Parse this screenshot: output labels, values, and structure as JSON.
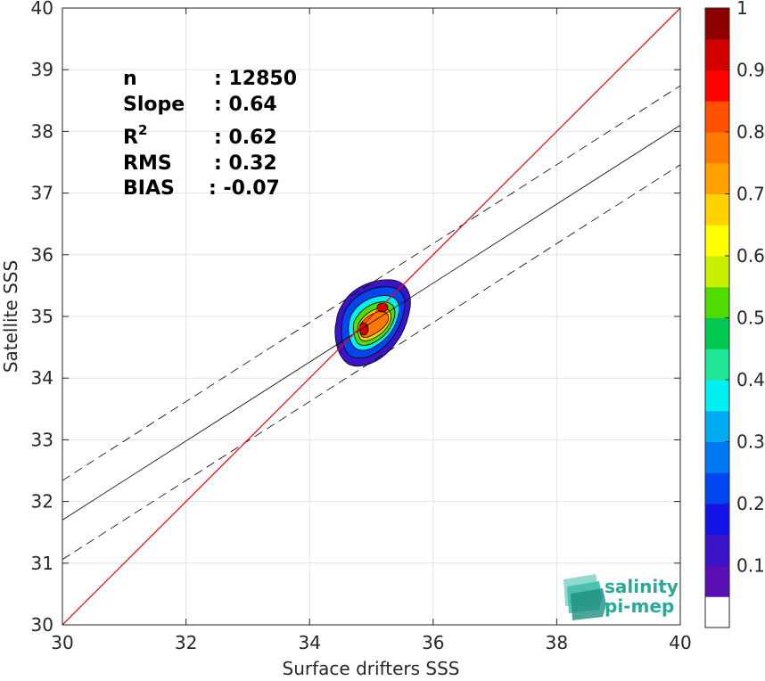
{
  "chart_data": {
    "type": "scatter",
    "xlabel": "Surface drifters SSS",
    "ylabel": "Satellite SSS",
    "xlim": [
      30,
      40
    ],
    "ylim": [
      30,
      40
    ],
    "xticks": [
      "30",
      "32",
      "34",
      "36",
      "38",
      "40"
    ],
    "yticks": [
      "30",
      "31",
      "32",
      "33",
      "34",
      "35",
      "36",
      "37",
      "38",
      "39",
      "40"
    ],
    "grid": true,
    "one_to_one_line": {
      "x": [
        30,
        40
      ],
      "y": [
        30,
        40
      ],
      "color": "#ff0000"
    },
    "regression_line": {
      "x": [
        30,
        40
      ],
      "y": [
        31.7,
        38.1
      ],
      "color": "#000000"
    },
    "confidence_lines": [
      {
        "x": [
          30,
          40
        ],
        "y": [
          32.34,
          38.74
        ]
      },
      {
        "x": [
          30,
          40
        ],
        "y": [
          31.06,
          37.46
        ]
      }
    ],
    "density_contours": {
      "levels": [
        0.05,
        0.1,
        0.2,
        0.4,
        0.6,
        0.8,
        0.95
      ],
      "peaks": [
        {
          "x": 34.9,
          "y": 34.8
        },
        {
          "x": 35.2,
          "y": 35.15
        }
      ]
    },
    "stats": {
      "n_label": "n",
      "n_value": ": 12850",
      "slope_label": "Slope",
      "slope_value": ": 0.64",
      "r2_label": "R",
      "r2_sup": "2",
      "r2_value": ": 0.62",
      "rms_label": "RMS",
      "rms_value": ": 0.32",
      "bias_label": "BIAS",
      "bias_value": ": -0.07"
    },
    "colorbar": {
      "ticks": [
        "0.1",
        "0.2",
        "0.3",
        "0.4",
        "0.5",
        "0.6",
        "0.7",
        "0.8",
        "0.9",
        "1"
      ],
      "colors": [
        "#ffffff",
        "#5a0fb4",
        "#3c14c8",
        "#1414e6",
        "#0046f0",
        "#0078f0",
        "#00aaf0",
        "#00f0f0",
        "#1ee696",
        "#00c850",
        "#50dc00",
        "#c8f000",
        "#ffff00",
        "#ffd200",
        "#ffa000",
        "#ff7800",
        "#ff5000",
        "#ff0000",
        "#d20000",
        "#8c0000"
      ]
    }
  },
  "logo": {
    "line1": "salinity",
    "line2": "pi-mep"
  }
}
